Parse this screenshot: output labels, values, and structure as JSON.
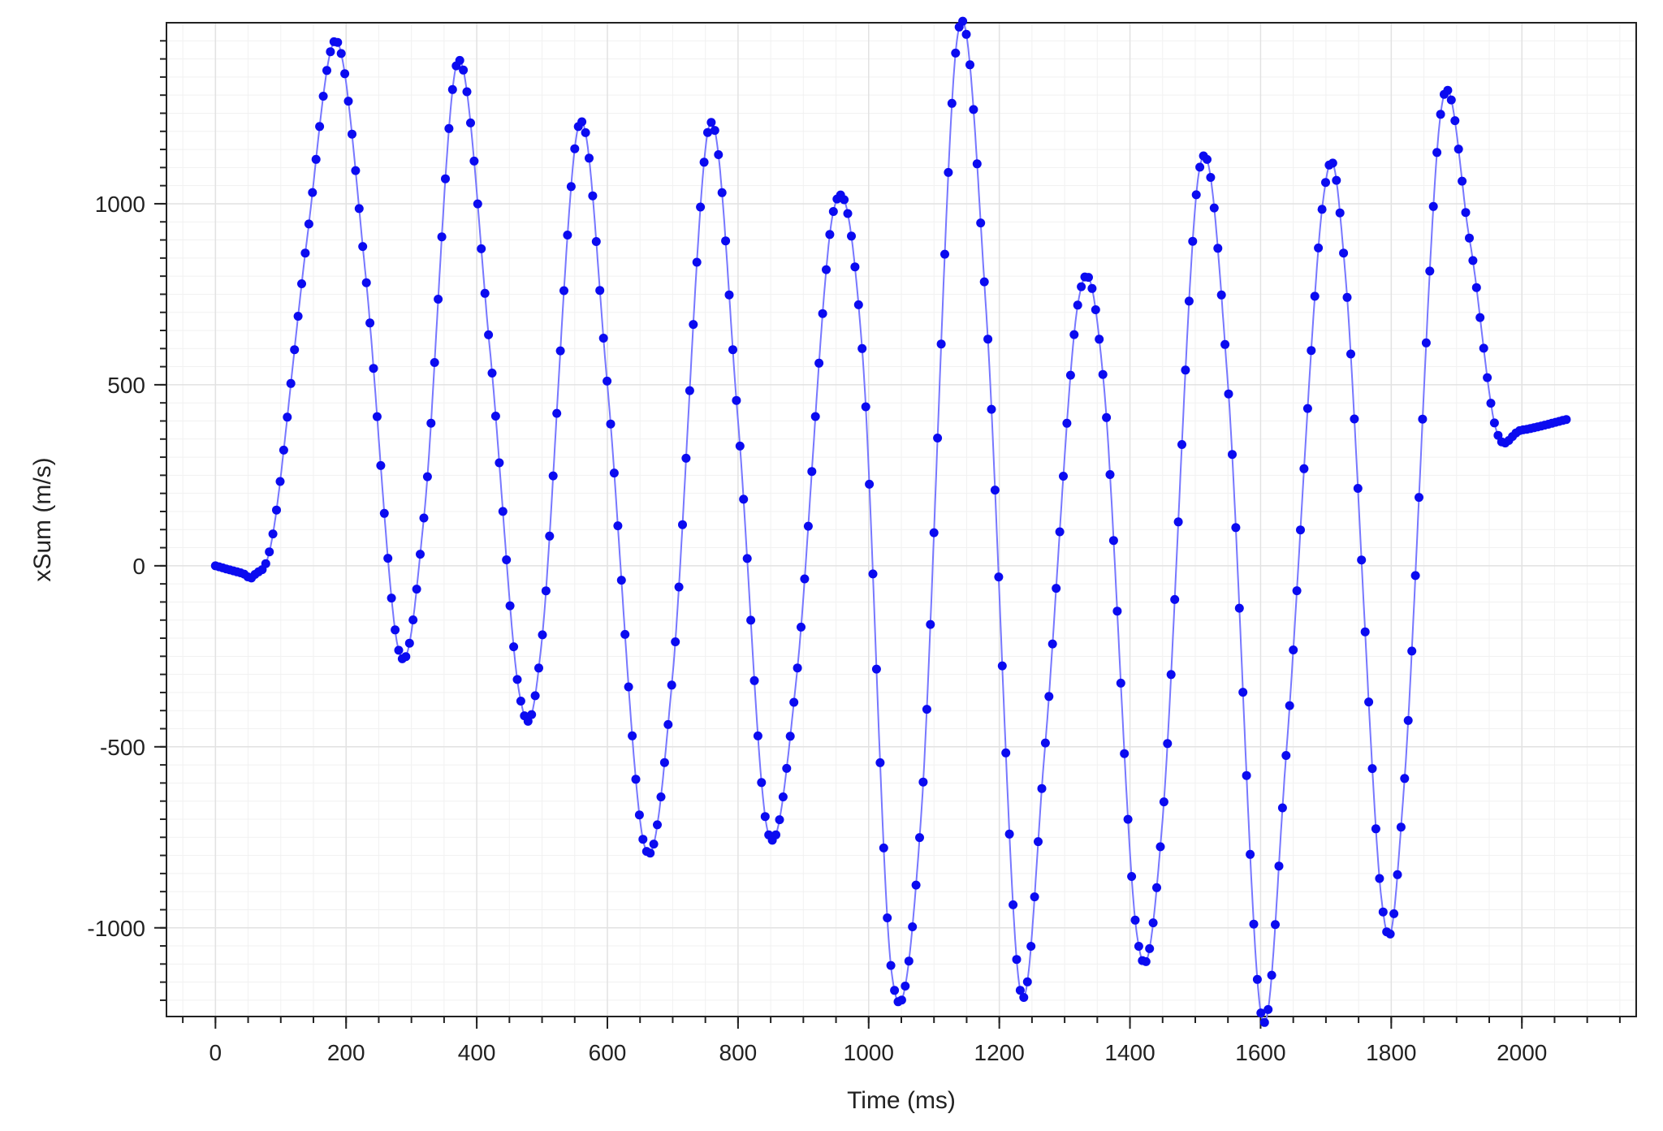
{
  "chart_data": {
    "type": "line",
    "title": "",
    "xlabel": "Time (ms)",
    "ylabel": "xSum (m/s)",
    "xlim": [
      -75,
      2175
    ],
    "ylim": [
      -1245,
      1500
    ],
    "grid": true,
    "legend": "none",
    "x_ticks": [
      0,
      200,
      400,
      600,
      800,
      1000,
      1200,
      1400,
      1600,
      1800,
      2000
    ],
    "x_tick_labels": [
      "0",
      "200",
      "400",
      "600",
      "800",
      "1000",
      "1200",
      "1400",
      "1600",
      "1800",
      "2000"
    ],
    "y_ticks": [
      1000,
      500,
      0,
      -500,
      -1000
    ],
    "y_tick_labels": [
      "1000",
      "500",
      "0",
      "-500",
      "-1000"
    ],
    "line_color": "#7777ff",
    "marker_color": "#0b0bf0",
    "series": [
      {
        "points": [
          [
            0,
            0
          ],
          [
            40,
            -20
          ],
          [
            60,
            -25
          ],
          [
            90,
            110
          ],
          [
            140,
            900
          ],
          [
            185,
            1450
          ],
          [
            230,
            800
          ],
          [
            280,
            -230
          ],
          [
            320,
            150
          ],
          [
            370,
            1390
          ],
          [
            420,
            600
          ],
          [
            465,
            -350
          ],
          [
            500,
            -200
          ],
          [
            555,
            1210
          ],
          [
            600,
            500
          ],
          [
            655,
            -760
          ],
          [
            700,
            -300
          ],
          [
            755,
            1210
          ],
          [
            800,
            400
          ],
          [
            845,
            -730
          ],
          [
            890,
            -300
          ],
          [
            945,
            970
          ],
          [
            990,
            600
          ],
          [
            1035,
            -1120
          ],
          [
            1080,
            -700
          ],
          [
            1135,
            1450
          ],
          [
            1180,
            700
          ],
          [
            1230,
            -1150
          ],
          [
            1270,
            -500
          ],
          [
            1320,
            720
          ],
          [
            1360,
            500
          ],
          [
            1410,
            -1010
          ],
          [
            1450,
            -700
          ],
          [
            1505,
            1080
          ],
          [
            1550,
            500
          ],
          [
            1600,
            -1230
          ],
          [
            1640,
            -500
          ],
          [
            1695,
            1000
          ],
          [
            1730,
            800
          ],
          [
            1785,
            -920
          ],
          [
            1820,
            -600
          ],
          [
            1875,
            1240
          ],
          [
            1920,
            900
          ],
          [
            1960,
            380
          ],
          [
            2000,
            375
          ],
          [
            2070,
            405
          ]
        ]
      }
    ]
  }
}
